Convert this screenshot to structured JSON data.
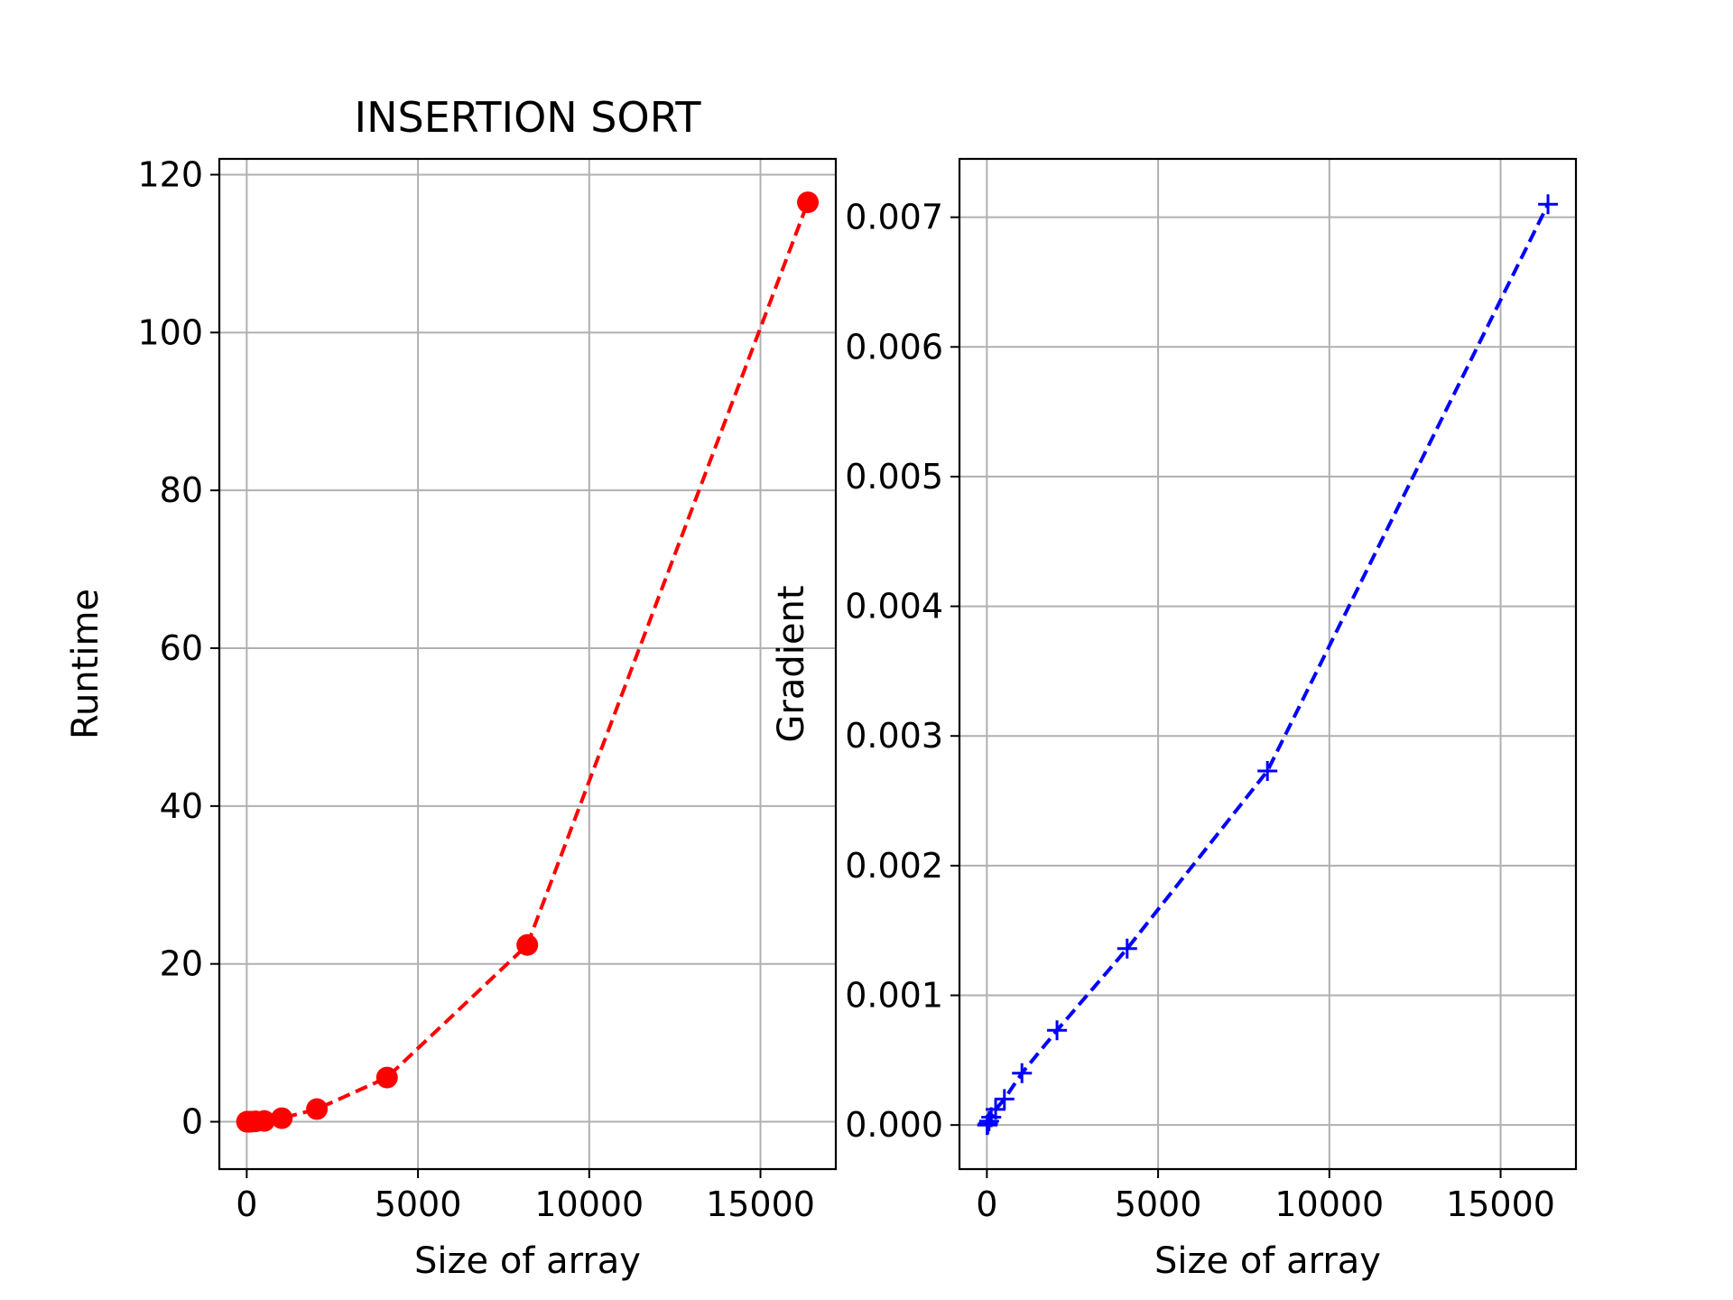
{
  "chart_data": [
    {
      "type": "line",
      "title": "INSERTION SORT",
      "xlabel": "Size of array",
      "ylabel": "Runtime",
      "x": [
        8,
        16,
        32,
        64,
        128,
        256,
        512,
        1024,
        2048,
        4096,
        8192,
        16384
      ],
      "series": [
        {
          "values": [
            0.0,
            0.0,
            0.0,
            0.0,
            0.0,
            0.05,
            0.1,
            0.45,
            1.6,
            5.6,
            22.4,
            116.5
          ]
        }
      ],
      "xlim": [
        -800,
        17200
      ],
      "ylim": [
        -6,
        122
      ],
      "xticks": [
        0,
        5000,
        10000,
        15000
      ],
      "xtick_labels": [
        "0",
        "5000",
        "10000",
        "15000"
      ],
      "yticks": [
        0,
        20,
        40,
        60,
        80,
        100,
        120
      ],
      "ytick_labels": [
        "0",
        "20",
        "40",
        "60",
        "80",
        "100",
        "120"
      ],
      "line_style": "dashed",
      "marker": "circle",
      "color": "#ff0000",
      "grid": true
    },
    {
      "type": "line",
      "title": "",
      "xlabel": "Size of array",
      "ylabel": "Gradient",
      "x": [
        8,
        16,
        32,
        64,
        128,
        256,
        512,
        1024,
        2048,
        4096,
        8192,
        16384
      ],
      "series": [
        {
          "values": [
            0.0,
            0.0,
            1e-05,
            3e-05,
            6e-05,
            0.00012,
            0.0002,
            0.0004,
            0.00073,
            0.00136,
            0.00273,
            0.0071
          ]
        }
      ],
      "xlim": [
        -800,
        17200
      ],
      "ylim": [
        -0.00034,
        0.00745
      ],
      "xticks": [
        0,
        5000,
        10000,
        15000
      ],
      "xtick_labels": [
        "0",
        "5000",
        "10000",
        "15000"
      ],
      "yticks": [
        0,
        0.001,
        0.002,
        0.003,
        0.004,
        0.005,
        0.006,
        0.007
      ],
      "ytick_labels": [
        "0.000",
        "0.001",
        "0.002",
        "0.003",
        "0.004",
        "0.005",
        "0.006",
        "0.007"
      ],
      "line_style": "dashed",
      "marker": "plus",
      "color": "#0000ff",
      "grid": true
    }
  ]
}
